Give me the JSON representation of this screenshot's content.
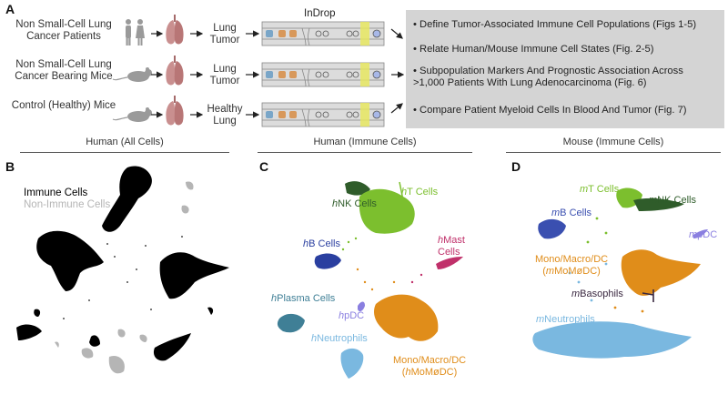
{
  "panel_a": {
    "letter": "A",
    "method_title": "InDrop",
    "sources": [
      {
        "label": "Non Small-Cell Lung Cancer Patients",
        "icon": "human-pair-icon",
        "target": "Lung Tumor"
      },
      {
        "label": "Non Small-Cell Lung Cancer Bearing Mice",
        "icon": "mouse-icon",
        "target": "Lung Tumor"
      },
      {
        "label": "Control (Healthy) Mice",
        "icon": "mouse-icon",
        "target": "Healthy Lung"
      }
    ],
    "summary": [
      "Define Tumor-Associated Immune Cell Populations (Figs 1-5)",
      "Relate Human/Mouse Immune Cell States (Fig. 2-5)",
      "Subpopulation Markers And Prognostic Association Across >1,000 Patients With Lung Adenocarcinoma (Fig. 6)",
      "Compare Patient Myeloid Cells In Blood And Tumor (Fig. 7)"
    ]
  },
  "sections": {
    "human_all": "Human (All Cells)",
    "human_immune": "Human (Immune Cells)",
    "mouse_immune": "Mouse (Immune Cells)"
  },
  "panel_b": {
    "letter": "B",
    "legend_immune": "Immune Cells",
    "legend_nonimmune": "Non-Immune Cells",
    "colors": {
      "immune": "#000000",
      "nonimmune": "#b5b5b5"
    }
  },
  "panel_c": {
    "letter": "C",
    "labels": {
      "nk_prefix": "h",
      "nk": "NK Cells",
      "t_prefix": "h",
      "t": "T Cells",
      "b_prefix": "h",
      "b": "B Cells",
      "mast_prefix": "h",
      "mast1": "Mast",
      "mast2": "Cells",
      "plasma_prefix": "h",
      "plasma": "Plasma Cells",
      "pdc_prefix": "h",
      "pdc": "pDC",
      "neut_prefix": "h",
      "neut": "Neutrophils",
      "mono1": "Mono/Macro/DC",
      "mono2_open": "(",
      "mono2_prefix": "h",
      "mono2": "MoMøDC)"
    },
    "colors": {
      "nk": "#2f5c2a",
      "t": "#7cbf2e",
      "b": "#2a3fa0",
      "mast": "#c0306a",
      "plasma": "#3f7f96",
      "pdc": "#8a7fe0",
      "neut": "#7ab8e0",
      "mono": "#e08d1a"
    }
  },
  "panel_d": {
    "letter": "D",
    "labels": {
      "t_prefix": "m",
      "t": "T Cells",
      "nk_prefix": "m",
      "nk": "NK Cells",
      "b_prefix": "m",
      "b": "B Cells",
      "pdc_prefix": "m",
      "pdc": "pDC",
      "mono1": "Mono/Macro/DC",
      "mono2_open": "(",
      "mono2_prefix": "m",
      "mono2": "MoMøDC)",
      "baso_prefix": "m",
      "baso": "Basophils",
      "neut_prefix": "m",
      "neut": "Neutrophils"
    },
    "colors": {
      "t": "#7cbf2e",
      "nk": "#2f5c2a",
      "b": "#3a4fb0",
      "pdc": "#8a7fe0",
      "mono": "#e08d1a",
      "baso": "#3a2840",
      "neut": "#7ab8e0"
    }
  }
}
